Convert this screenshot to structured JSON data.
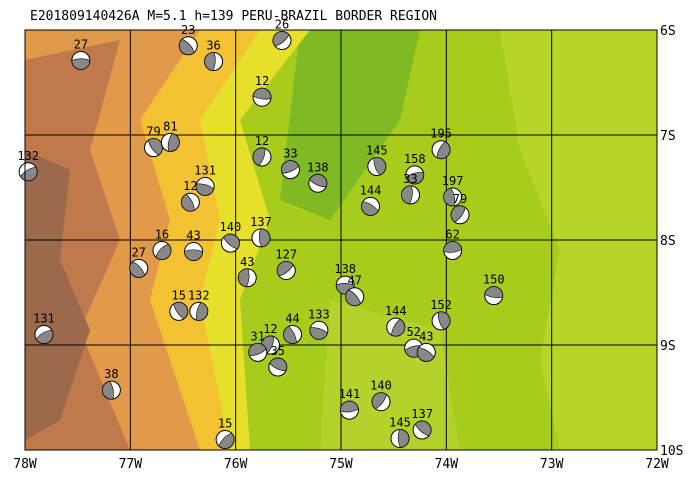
{
  "title": "E201809140426A M=5.1 h=139 PERU-BRAZIL BORDER REGION",
  "lonlim": [
    -78,
    -72
  ],
  "latlim": [
    -6,
    -10
  ],
  "lonticks": [
    {
      "value": -78,
      "label": "78W"
    },
    {
      "value": -77,
      "label": "77W"
    },
    {
      "value": -76,
      "label": "76W"
    },
    {
      "value": -75,
      "label": "75W"
    },
    {
      "value": -74,
      "label": "74W"
    },
    {
      "value": -73,
      "label": "73W"
    },
    {
      "value": -72,
      "label": "72W"
    }
  ],
  "latticks": [
    {
      "value": -6,
      "label": "6S"
    },
    {
      "value": -7,
      "label": "7S"
    },
    {
      "value": -8,
      "label": "8S"
    },
    {
      "value": -9,
      "label": "9S"
    },
    {
      "value": -10,
      "label": "10S"
    }
  ],
  "events": [
    {
      "lon": -77.47,
      "lat": -6.29,
      "depth": 27
    },
    {
      "lon": -76.45,
      "lat": -6.15,
      "depth": 23
    },
    {
      "lon": -76.21,
      "lat": -6.3,
      "depth": 36
    },
    {
      "lon": -75.56,
      "lat": -6.1,
      "depth": 26
    },
    {
      "lon": -75.75,
      "lat": -6.64,
      "depth": 12
    },
    {
      "lon": -76.78,
      "lat": -7.12,
      "depth": 79
    },
    {
      "lon": -76.62,
      "lat": -7.07,
      "depth": 81
    },
    {
      "lon": -77.97,
      "lat": -7.35,
      "depth": 132
    },
    {
      "lon": -76.29,
      "lat": -7.49,
      "depth": 131
    },
    {
      "lon": -76.43,
      "lat": -7.64,
      "depth": 12
    },
    {
      "lon": -75.75,
      "lat": -7.21,
      "depth": 12
    },
    {
      "lon": -75.48,
      "lat": -7.33,
      "depth": 33
    },
    {
      "lon": -75.22,
      "lat": -7.46,
      "depth": 138
    },
    {
      "lon": -74.66,
      "lat": -7.3,
      "depth": 145
    },
    {
      "lon": -74.05,
      "lat": -7.14,
      "depth": 195
    },
    {
      "lon": -74.3,
      "lat": -7.38,
      "depth": 158
    },
    {
      "lon": -74.72,
      "lat": -7.68,
      "depth": 144
    },
    {
      "lon": -73.94,
      "lat": -7.59,
      "depth": 197
    },
    {
      "lon": -73.87,
      "lat": -7.76,
      "depth": 79
    },
    {
      "lon": -73.94,
      "lat": -8.1,
      "depth": 62
    },
    {
      "lon": -76.05,
      "lat": -8.03,
      "depth": 140
    },
    {
      "lon": -75.76,
      "lat": -7.98,
      "depth": 137
    },
    {
      "lon": -76.7,
      "lat": -8.1,
      "depth": 16
    },
    {
      "lon": -76.4,
      "lat": -8.11,
      "depth": 43
    },
    {
      "lon": -76.92,
      "lat": -8.27,
      "depth": 27
    },
    {
      "lon": -75.89,
      "lat": -8.36,
      "depth": 43
    },
    {
      "lon": -75.52,
      "lat": -8.29,
      "depth": 127
    },
    {
      "lon": -73.55,
      "lat": -8.53,
      "depth": 150
    },
    {
      "lon": -76.54,
      "lat": -8.68,
      "depth": 15
    },
    {
      "lon": -76.35,
      "lat": -8.68,
      "depth": 132
    },
    {
      "lon": -77.82,
      "lat": -8.9,
      "depth": 131
    },
    {
      "lon": -75.21,
      "lat": -8.86,
      "depth": 133
    },
    {
      "lon": -75.46,
      "lat": -8.9,
      "depth": 44
    },
    {
      "lon": -75.67,
      "lat": -9.0,
      "depth": 12
    },
    {
      "lon": -75.79,
      "lat": -9.07,
      "depth": 31
    },
    {
      "lon": -75.6,
      "lat": -9.21,
      "depth": 35
    },
    {
      "lon": -74.05,
      "lat": -8.77,
      "depth": 152
    },
    {
      "lon": -74.48,
      "lat": -8.83,
      "depth": 144
    },
    {
      "lon": -74.31,
      "lat": -9.03,
      "depth": 52
    },
    {
      "lon": -74.19,
      "lat": -9.07,
      "depth": 43
    },
    {
      "lon": -77.18,
      "lat": -9.43,
      "depth": 38
    },
    {
      "lon": -74.62,
      "lat": -9.54,
      "depth": 140
    },
    {
      "lon": -74.92,
      "lat": -9.62,
      "depth": 141
    },
    {
      "lon": -74.23,
      "lat": -9.81,
      "depth": 137
    },
    {
      "lon": -74.44,
      "lat": -9.89,
      "depth": 145
    },
    {
      "lon": -76.1,
      "lat": -9.9,
      "depth": 15
    },
    {
      "lon": -74.96,
      "lat": -8.43,
      "depth": 138
    },
    {
      "lon": -74.87,
      "lat": -8.54,
      "depth": 47
    },
    {
      "lon": -74.34,
      "lat": -7.57,
      "depth": 33
    }
  ]
}
